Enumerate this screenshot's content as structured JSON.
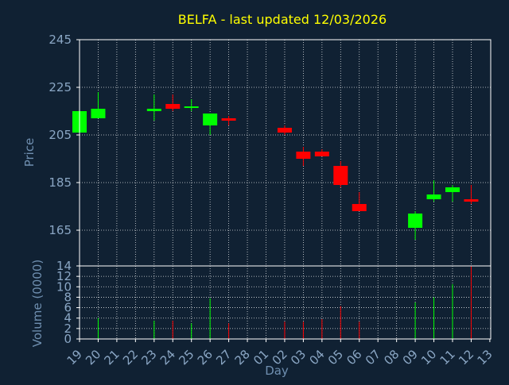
{
  "chart_data": {
    "type": "candlestick",
    "title": "BELFA - last updated 12/03/2026",
    "xlabel": "Day",
    "ylabel_price": "Price",
    "ylabel_volume": "Volume (0000)",
    "grid": true,
    "price_ylim": [
      150,
      245
    ],
    "price_ticks": [
      245,
      225,
      205,
      185,
      165
    ],
    "volume_ylim": [
      0,
      14
    ],
    "volume_ticks": [
      14,
      12,
      10,
      8,
      6,
      4,
      2,
      0
    ],
    "x_tick_labels": [
      "19",
      "20",
      "21",
      "22",
      "23",
      "24",
      "25",
      "26",
      "27",
      "28",
      "01",
      "02",
      "03",
      "04",
      "05",
      "06",
      "07",
      "08",
      "09",
      "10",
      "11",
      "12",
      "13"
    ],
    "colors": {
      "background": "#102133",
      "axis": "#ffffff",
      "grid": "#ffffff",
      "title": "#ffff00",
      "label": "#6f8fb0",
      "tick": "#8aa6c4",
      "up": "#00ff00",
      "down": "#ff0000"
    },
    "candles": [
      {
        "day": "19",
        "open": 206,
        "high": 215,
        "low": 206,
        "close": 215,
        "volume": 0
      },
      {
        "day": "20",
        "open": 212,
        "high": 223,
        "low": 212,
        "close": 216,
        "volume": 4
      },
      {
        "day": "23",
        "open": 215,
        "high": 222,
        "low": 211,
        "close": 216,
        "volume": 3.5
      },
      {
        "day": "24",
        "open": 218,
        "high": 222,
        "low": 215,
        "close": 216,
        "volume": 3.5
      },
      {
        "day": "25",
        "open": 217,
        "high": 220,
        "low": 215,
        "close": 217,
        "volume": 3
      },
      {
        "day": "26",
        "open": 209,
        "high": 214,
        "low": 205,
        "close": 214,
        "volume": 7.8
      },
      {
        "day": "27",
        "open": 212,
        "high": 213,
        "low": 209,
        "close": 211,
        "volume": 3
      },
      {
        "day": "02",
        "open": 208,
        "high": 209,
        "low": 205,
        "close": 206,
        "volume": 3.3
      },
      {
        "day": "03",
        "open": 198,
        "high": 200,
        "low": 192,
        "close": 195,
        "volume": 3.3
      },
      {
        "day": "04",
        "open": 198,
        "high": 199,
        "low": 196,
        "close": 196,
        "volume": 3.8
      },
      {
        "day": "05",
        "open": 192,
        "high": 194,
        "low": 183,
        "close": 184,
        "volume": 6.3
      },
      {
        "day": "06",
        "open": 176,
        "high": 181,
        "low": 173,
        "close": 173,
        "volume": 3.3
      },
      {
        "day": "09",
        "open": 166,
        "high": 173,
        "low": 161,
        "close": 172,
        "volume": 7
      },
      {
        "day": "10",
        "open": 178,
        "high": 186,
        "low": 177,
        "close": 180,
        "volume": 8
      },
      {
        "day": "11",
        "open": 181,
        "high": 184,
        "low": 177,
        "close": 183,
        "volume": 10.5
      },
      {
        "day": "12",
        "open": 178,
        "high": 184,
        "low": 176,
        "close": 177,
        "volume": 14
      }
    ]
  }
}
